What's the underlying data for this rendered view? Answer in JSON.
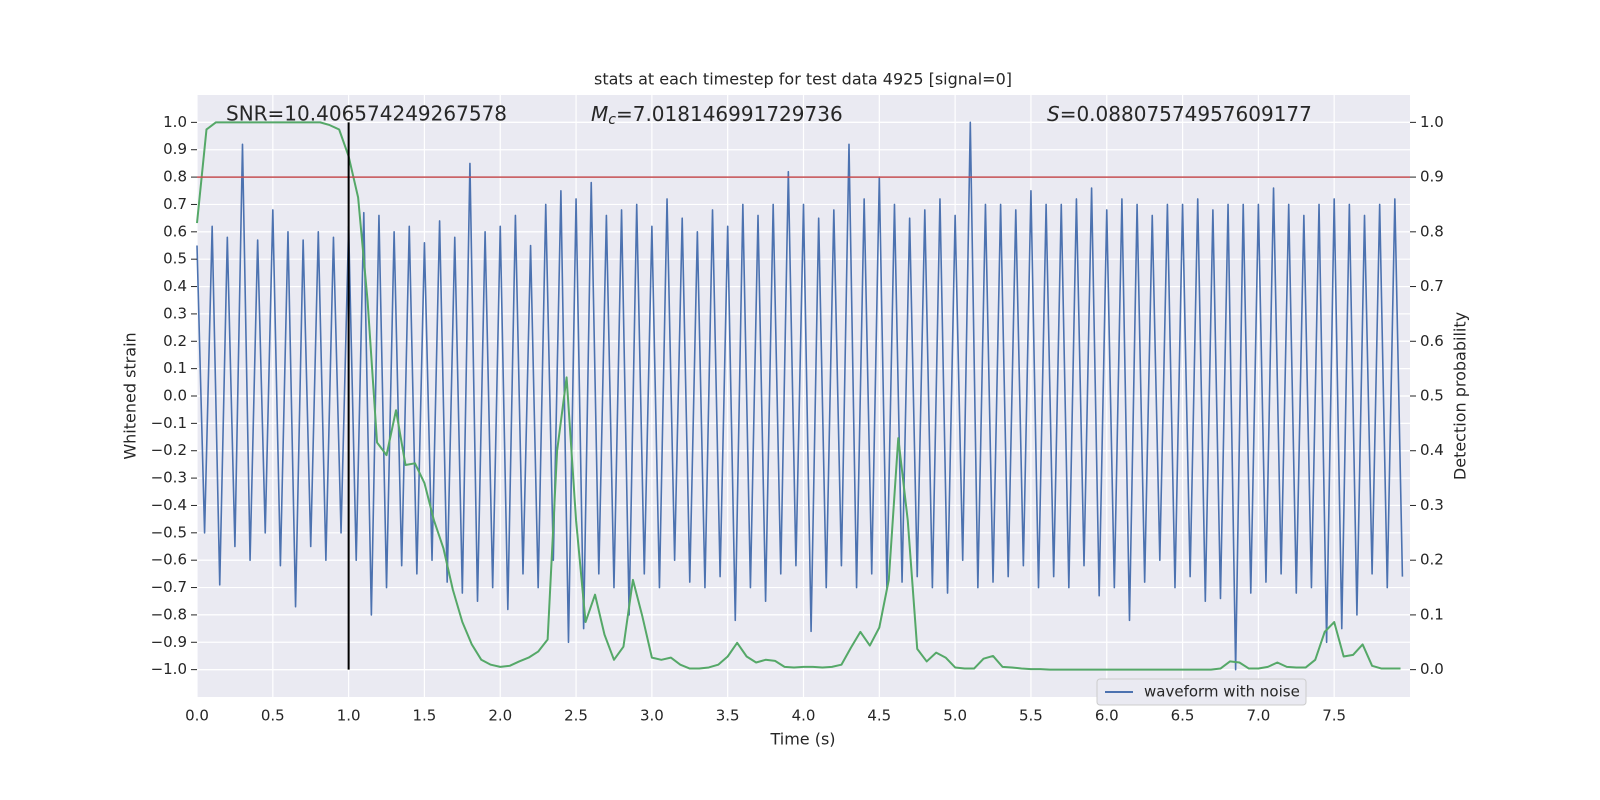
{
  "chart_data": {
    "type": "line",
    "title": "stats at each timestep for test data 4925 [signal=0]",
    "xlabel": "Time (s)",
    "ylabel": "Whitened strain",
    "y2label": "Detection probability",
    "xlim": [
      0,
      8
    ],
    "ylim": [
      -1.1,
      1.1
    ],
    "y2lim": [
      -0.05,
      1.05
    ],
    "xticks": [
      {
        "value": 0,
        "label": "0.0"
      },
      0.5,
      {
        "value": 1,
        "label": "1.0"
      },
      1.5,
      {
        "value": 2,
        "label": "2.0"
      },
      2.5,
      {
        "value": 3,
        "label": "3.0"
      },
      3.5,
      {
        "value": 4,
        "label": "4.0"
      },
      4.5,
      {
        "value": 5,
        "label": "5.0"
      },
      5.5,
      {
        "value": 6,
        "label": "6.0"
      },
      6.5,
      {
        "value": 7,
        "label": "7.0"
      },
      7.5
    ],
    "yticks": [
      {
        "value": -1.0,
        "label": "−1.0"
      },
      {
        "value": -0.9,
        "label": "−0.9"
      },
      {
        "value": -0.8,
        "label": "−0.8"
      },
      {
        "value": -0.7,
        "label": "−0.7"
      },
      {
        "value": -0.6,
        "label": "−0.6"
      },
      {
        "value": -0.5,
        "label": "−0.5"
      },
      {
        "value": -0.4,
        "label": "−0.4"
      },
      {
        "value": -0.3,
        "label": "−0.3"
      },
      {
        "value": -0.2,
        "label": "−0.2"
      },
      {
        "value": -0.1,
        "label": "−0.1"
      },
      {
        "value": 0,
        "label": "0.0"
      },
      0.1,
      0.2,
      0.3,
      0.4,
      0.5,
      0.6,
      0.7,
      0.8,
      0.9,
      {
        "value": 1,
        "label": "1.0"
      }
    ],
    "y2ticks": [
      {
        "value": 0,
        "label": "0.0"
      },
      0.1,
      0.2,
      0.3,
      0.4,
      0.5,
      0.6,
      0.7,
      0.8,
      0.9,
      {
        "value": 1,
        "label": "1.0"
      }
    ],
    "grid": true,
    "legend": "lower right",
    "annotations": [
      {
        "text": "SNR=10.406574249267578"
      },
      {
        "symbol": "M",
        "subscript": "c",
        "text": "=7.018146991729736"
      },
      {
        "symbol": "S",
        "text": "=0.08807574957609177"
      }
    ],
    "hlines": [
      {
        "value": 0.8,
        "color": "#c44e52"
      }
    ],
    "vlines": [
      {
        "x": 1,
        "ymin": -1,
        "ymax": 1,
        "color": "#000000"
      }
    ],
    "series": [
      {
        "name": "waveform with noise",
        "color": "#4c72b0",
        "x": [
          0,
          0.05,
          0.1,
          0.15,
          0.2,
          0.25,
          0.3,
          0.35,
          0.4,
          0.45,
          0.5,
          0.55,
          0.6,
          0.65,
          0.7,
          0.75,
          0.8,
          0.85,
          0.9,
          0.95,
          1,
          1.05,
          1.1,
          1.15,
          1.2,
          1.25,
          1.3,
          1.35,
          1.4,
          1.45,
          1.5,
          1.55,
          1.6,
          1.65,
          1.7,
          1.75,
          1.8,
          1.85,
          1.9,
          1.95,
          2,
          2.05,
          2.1,
          2.15,
          2.2,
          2.25,
          2.3,
          2.35,
          2.4,
          2.45,
          2.5,
          2.55,
          2.6,
          2.65,
          2.7,
          2.75,
          2.8,
          2.85,
          2.9,
          2.95,
          3,
          3.05,
          3.1,
          3.15,
          3.2,
          3.25,
          3.3,
          3.35,
          3.4,
          3.45,
          3.5,
          3.55,
          3.6,
          3.65,
          3.7,
          3.75,
          3.8,
          3.85,
          3.9,
          3.95,
          4,
          4.05,
          4.1,
          4.15,
          4.2,
          4.25,
          4.3,
          4.35,
          4.4,
          4.45,
          4.5,
          4.55,
          4.6,
          4.65,
          4.7,
          4.75,
          4.8,
          4.85,
          4.9,
          4.95,
          5,
          5.05,
          5.1,
          5.15,
          5.2,
          5.25,
          5.3,
          5.35,
          5.4,
          5.45,
          5.5,
          5.55,
          5.6,
          5.65,
          5.7,
          5.75,
          5.8,
          5.85,
          5.9,
          5.95,
          6,
          6.05,
          6.1,
          6.15,
          6.2,
          6.25,
          6.3,
          6.35,
          6.4,
          6.45,
          6.5,
          6.55,
          6.6,
          6.65,
          6.7,
          6.75,
          6.8,
          6.85,
          6.9,
          6.95,
          7,
          7.05,
          7.1,
          7.15,
          7.2,
          7.25,
          7.3,
          7.35,
          7.4,
          7.45,
          7.5,
          7.55,
          7.6,
          7.65,
          7.7,
          7.75,
          7.8,
          7.85,
          7.9,
          7.95
        ],
        "values": [
          0.55,
          -0.5,
          0.62,
          -0.69,
          0.58,
          -0.55,
          0.92,
          -0.6,
          0.57,
          -0.5,
          0.68,
          -0.62,
          0.6,
          -0.77,
          0.57,
          -0.55,
          0.6,
          -0.6,
          0.58,
          -0.5,
          0.62,
          -0.6,
          0.67,
          -0.8,
          0.66,
          -0.7,
          0.6,
          -0.62,
          0.62,
          -0.65,
          0.56,
          -0.6,
          0.64,
          -0.68,
          0.58,
          -0.72,
          0.85,
          -0.75,
          0.6,
          -0.7,
          0.62,
          -0.78,
          0.66,
          -0.65,
          0.55,
          -0.7,
          0.7,
          -0.6,
          0.75,
          -0.9,
          0.72,
          -0.85,
          0.78,
          -0.65,
          0.66,
          -0.7,
          0.68,
          -0.8,
          0.7,
          -0.65,
          0.62,
          -0.7,
          0.72,
          -0.6,
          0.65,
          -0.68,
          0.6,
          -0.7,
          0.68,
          -0.66,
          0.62,
          -0.82,
          0.7,
          -0.7,
          0.66,
          -0.75,
          0.7,
          -0.65,
          0.82,
          -0.62,
          0.7,
          -0.86,
          0.65,
          -0.7,
          0.68,
          -0.62,
          0.92,
          -0.7,
          0.72,
          -0.65,
          0.8,
          -0.7,
          0.7,
          -0.68,
          0.65,
          -0.66,
          0.68,
          -0.7,
          0.72,
          -0.72,
          0.66,
          -0.6,
          1.0,
          -0.7,
          0.7,
          -0.68,
          0.7,
          -0.66,
          0.68,
          -0.62,
          0.75,
          -0.7,
          0.7,
          -0.66,
          0.7,
          -0.7,
          0.72,
          -0.62,
          0.76,
          -0.73,
          0.68,
          -0.7,
          0.72,
          -0.82,
          0.7,
          -0.68,
          0.66,
          -0.6,
          0.7,
          -0.7,
          0.7,
          -0.66,
          0.72,
          -0.75,
          0.68,
          -0.74,
          0.7,
          -1.0,
          0.7,
          -0.72,
          0.7,
          -0.68,
          0.76,
          -0.65,
          0.7,
          -0.72,
          0.66,
          -0.7,
          0.7,
          -0.9,
          0.72,
          -0.85,
          0.7,
          -0.8,
          0.66,
          -0.65,
          0.7,
          -0.7,
          0.72,
          -0.66
        ]
      },
      {
        "color": "#55a868",
        "axis": "y2",
        "x": [
          0,
          0.0625,
          0.125,
          0.1875,
          0.25,
          0.3125,
          0.375,
          0.4375,
          0.5,
          0.5625,
          0.625,
          0.6875,
          0.75,
          0.8125,
          0.875,
          0.9375,
          1,
          1.0625,
          1.125,
          1.1875,
          1.25,
          1.3125,
          1.375,
          1.4375,
          1.5,
          1.5625,
          1.625,
          1.6875,
          1.75,
          1.8125,
          1.875,
          1.9375,
          2,
          2.0625,
          2.125,
          2.1875,
          2.25,
          2.3125,
          2.375,
          2.4375,
          2.5,
          2.5625,
          2.625,
          2.6875,
          2.75,
          2.8125,
          2.875,
          2.9375,
          3,
          3.0625,
          3.125,
          3.1875,
          3.25,
          3.3125,
          3.375,
          3.4375,
          3.5,
          3.5625,
          3.625,
          3.6875,
          3.75,
          3.8125,
          3.875,
          3.9375,
          4,
          4.0625,
          4.125,
          4.1875,
          4.25,
          4.3125,
          4.375,
          4.4375,
          4.5,
          4.5625,
          4.625,
          4.6875,
          4.75,
          4.8125,
          4.875,
          4.9375,
          5,
          5.0625,
          5.125,
          5.1875,
          5.25,
          5.3125,
          5.375,
          5.4375,
          5.5,
          5.5625,
          5.625,
          5.6875,
          5.75,
          5.8125,
          5.875,
          5.9375,
          6,
          6.0625,
          6.125,
          6.1875,
          6.25,
          6.3125,
          6.375,
          6.4375,
          6.5,
          6.5625,
          6.625,
          6.6875,
          6.75,
          6.8125,
          6.875,
          6.9375,
          7,
          7.0625,
          7.125,
          7.1875,
          7.25,
          7.3125,
          7.375,
          7.4375,
          7.5,
          7.5625,
          7.625,
          7.6875,
          7.75,
          7.8125,
          7.875,
          7.9375
        ],
        "values": [
          0.816,
          0.987,
          1.0,
          1.0,
          1.0,
          1.0,
          1.0,
          1.0,
          1.0,
          1.0,
          1.0,
          1.0,
          1.0,
          1.0,
          0.995,
          0.987,
          0.938,
          0.863,
          0.674,
          0.415,
          0.392,
          0.474,
          0.374,
          0.377,
          0.341,
          0.273,
          0.222,
          0.146,
          0.087,
          0.046,
          0.018,
          0.009,
          0.005,
          0.007,
          0.015,
          0.022,
          0.033,
          0.055,
          0.4,
          0.534,
          0.273,
          0.087,
          0.137,
          0.064,
          0.018,
          0.042,
          0.164,
          0.097,
          0.022,
          0.018,
          0.022,
          0.009,
          0.002,
          0.002,
          0.004,
          0.009,
          0.024,
          0.049,
          0.024,
          0.013,
          0.018,
          0.016,
          0.005,
          0.004,
          0.005,
          0.005,
          0.004,
          0.005,
          0.009,
          0.04,
          0.069,
          0.044,
          0.077,
          0.164,
          0.423,
          0.273,
          0.038,
          0.015,
          0.031,
          0.022,
          0.004,
          0.002,
          0.002,
          0.02,
          0.025,
          0.005,
          0.004,
          0.002,
          0.001,
          0.001,
          0,
          0,
          0,
          0,
          0,
          0,
          0,
          0,
          0,
          0,
          0,
          0,
          0,
          0,
          0,
          0,
          0,
          0,
          0.002,
          0.015,
          0.013,
          0.002,
          0.002,
          0.005,
          0.013,
          0.005,
          0.004,
          0.004,
          0.018,
          0.069,
          0.087,
          0.024,
          0.027,
          0.046,
          0.007,
          0.002,
          0.002,
          0.002
        ]
      }
    ]
  }
}
